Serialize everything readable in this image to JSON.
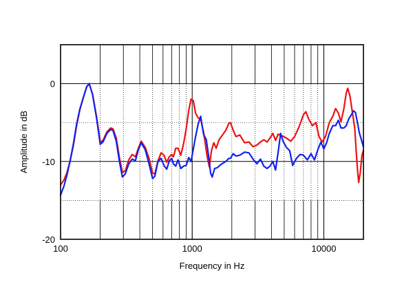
{
  "chart_data": {
    "type": "line",
    "xlabel": "Frequency in Hz",
    "ylabel": "Amplitude in dB",
    "x_scale": "log",
    "xlim": [
      100,
      20000
    ],
    "ylim": [
      -20,
      5
    ],
    "x_ticks": [
      {
        "value": 100,
        "label": "100"
      },
      {
        "value": 1000,
        "label": "1000"
      },
      {
        "value": 10000,
        "label": "10000"
      }
    ],
    "y_ticks": [
      {
        "value": 0,
        "label": "0"
      },
      {
        "value": -10,
        "label": "-10"
      },
      {
        "value": -20,
        "label": "-20"
      }
    ],
    "grid": true,
    "legend": "none",
    "series": [
      {
        "color": "#ee1111",
        "points": [
          [
            100,
            -13.0
          ],
          [
            106,
            -12.4
          ],
          [
            112,
            -11.4
          ],
          [
            118,
            -10.0
          ],
          [
            125,
            -8.0
          ],
          [
            132,
            -5.5
          ],
          [
            140,
            -3.4
          ],
          [
            150,
            -1.6
          ],
          [
            158,
            -0.4
          ],
          [
            165,
            0.0
          ],
          [
            175,
            -1.4
          ],
          [
            188,
            -4.3
          ],
          [
            200,
            -7.5
          ],
          [
            210,
            -7.3
          ],
          [
            225,
            -6.2
          ],
          [
            240,
            -5.7
          ],
          [
            250,
            -5.8
          ],
          [
            265,
            -7.0
          ],
          [
            280,
            -9.5
          ],
          [
            295,
            -11.4
          ],
          [
            310,
            -11.2
          ],
          [
            330,
            -9.8
          ],
          [
            350,
            -9.1
          ],
          [
            370,
            -9.4
          ],
          [
            390,
            -8.3
          ],
          [
            410,
            -7.4
          ],
          [
            440,
            -8.2
          ],
          [
            470,
            -9.6
          ],
          [
            500,
            -11.5
          ],
          [
            520,
            -11.6
          ],
          [
            550,
            -9.9
          ],
          [
            580,
            -8.9
          ],
          [
            610,
            -9.2
          ],
          [
            640,
            -10.1
          ],
          [
            670,
            -9.4
          ],
          [
            700,
            -9.1
          ],
          [
            720,
            -9.4
          ],
          [
            750,
            -8.3
          ],
          [
            780,
            -8.3
          ],
          [
            820,
            -9.2
          ],
          [
            860,
            -7.7
          ],
          [
            900,
            -5.8
          ],
          [
            940,
            -3.5
          ],
          [
            980,
            -2.0
          ],
          [
            1020,
            -2.2
          ],
          [
            1060,
            -3.8
          ],
          [
            1110,
            -4.4
          ],
          [
            1160,
            -4.6
          ],
          [
            1220,
            -6.2
          ],
          [
            1300,
            -9.4
          ],
          [
            1350,
            -10.7
          ],
          [
            1400,
            -8.6
          ],
          [
            1460,
            -7.6
          ],
          [
            1520,
            -8.3
          ],
          [
            1600,
            -7.2
          ],
          [
            1700,
            -6.6
          ],
          [
            1800,
            -6.0
          ],
          [
            1900,
            -5.1
          ],
          [
            1950,
            -5.0
          ],
          [
            2050,
            -6.0
          ],
          [
            2150,
            -6.8
          ],
          [
            2300,
            -6.6
          ],
          [
            2500,
            -7.6
          ],
          [
            2700,
            -7.5
          ],
          [
            2900,
            -8.1
          ],
          [
            3100,
            -7.9
          ],
          [
            3300,
            -7.5
          ],
          [
            3500,
            -7.2
          ],
          [
            3700,
            -7.5
          ],
          [
            3900,
            -7.0
          ],
          [
            4100,
            -6.4
          ],
          [
            4300,
            -7.3
          ],
          [
            4500,
            -6.5
          ],
          [
            4800,
            -6.7
          ],
          [
            5200,
            -7.0
          ],
          [
            5600,
            -7.4
          ],
          [
            6000,
            -6.8
          ],
          [
            6500,
            -5.5
          ],
          [
            7000,
            -4.0
          ],
          [
            7300,
            -3.6
          ],
          [
            7700,
            -4.6
          ],
          [
            8200,
            -5.4
          ],
          [
            8700,
            -5.0
          ],
          [
            9200,
            -6.8
          ],
          [
            9700,
            -7.5
          ],
          [
            10300,
            -6.8
          ],
          [
            11000,
            -5.0
          ],
          [
            11700,
            -4.2
          ],
          [
            12300,
            -3.2
          ],
          [
            12900,
            -3.8
          ],
          [
            13500,
            -4.9
          ],
          [
            14200,
            -3.2
          ],
          [
            14800,
            -1.2
          ],
          [
            15200,
            -0.6
          ],
          [
            15800,
            -1.6
          ],
          [
            16600,
            -4.0
          ],
          [
            17200,
            -5.8
          ],
          [
            17600,
            -8.6
          ],
          [
            18000,
            -11.0
          ],
          [
            18400,
            -12.7
          ],
          [
            18900,
            -11.5
          ],
          [
            19500,
            -9.2
          ],
          [
            20000,
            -8.6
          ]
        ]
      },
      {
        "color": "#1122ee",
        "points": [
          [
            100,
            -14.3
          ],
          [
            106,
            -13.2
          ],
          [
            112,
            -11.7
          ],
          [
            118,
            -10.0
          ],
          [
            125,
            -7.8
          ],
          [
            132,
            -5.3
          ],
          [
            140,
            -3.3
          ],
          [
            150,
            -1.6
          ],
          [
            158,
            -0.4
          ],
          [
            165,
            0.0
          ],
          [
            175,
            -1.4
          ],
          [
            188,
            -4.5
          ],
          [
            200,
            -7.8
          ],
          [
            210,
            -7.5
          ],
          [
            225,
            -6.4
          ],
          [
            240,
            -5.9
          ],
          [
            250,
            -6.0
          ],
          [
            265,
            -7.4
          ],
          [
            280,
            -10.0
          ],
          [
            295,
            -12.0
          ],
          [
            310,
            -11.6
          ],
          [
            330,
            -10.3
          ],
          [
            350,
            -9.7
          ],
          [
            370,
            -9.9
          ],
          [
            390,
            -8.5
          ],
          [
            410,
            -7.6
          ],
          [
            440,
            -8.5
          ],
          [
            470,
            -10.3
          ],
          [
            500,
            -12.2
          ],
          [
            520,
            -11.9
          ],
          [
            550,
            -10.0
          ],
          [
            580,
            -9.6
          ],
          [
            610,
            -10.5
          ],
          [
            640,
            -11.0
          ],
          [
            670,
            -9.9
          ],
          [
            700,
            -9.6
          ],
          [
            720,
            -10.3
          ],
          [
            750,
            -10.6
          ],
          [
            780,
            -9.8
          ],
          [
            820,
            -10.9
          ],
          [
            860,
            -10.6
          ],
          [
            900,
            -10.5
          ],
          [
            940,
            -9.5
          ],
          [
            980,
            -10.0
          ],
          [
            1020,
            -8.4
          ],
          [
            1060,
            -6.8
          ],
          [
            1110,
            -5.2
          ],
          [
            1160,
            -4.2
          ],
          [
            1220,
            -6.5
          ],
          [
            1280,
            -7.2
          ],
          [
            1330,
            -9.2
          ],
          [
            1380,
            -11.5
          ],
          [
            1420,
            -12.0
          ],
          [
            1480,
            -10.9
          ],
          [
            1550,
            -10.8
          ],
          [
            1650,
            -10.4
          ],
          [
            1800,
            -10.0
          ],
          [
            1900,
            -9.6
          ],
          [
            1950,
            -9.6
          ],
          [
            2050,
            -9.0
          ],
          [
            2150,
            -9.3
          ],
          [
            2300,
            -9.2
          ],
          [
            2500,
            -8.8
          ],
          [
            2700,
            -8.9
          ],
          [
            2900,
            -9.7
          ],
          [
            3100,
            -10.3
          ],
          [
            3300,
            -9.7
          ],
          [
            3500,
            -10.6
          ],
          [
            3700,
            -10.9
          ],
          [
            3900,
            -10.6
          ],
          [
            4100,
            -10.0
          ],
          [
            4300,
            -11.1
          ],
          [
            4500,
            -8.8
          ],
          [
            4700,
            -6.4
          ],
          [
            4900,
            -7.4
          ],
          [
            5200,
            -8.2
          ],
          [
            5500,
            -8.6
          ],
          [
            5800,
            -10.5
          ],
          [
            6200,
            -9.6
          ],
          [
            6600,
            -9.1
          ],
          [
            7000,
            -9.2
          ],
          [
            7500,
            -9.8
          ],
          [
            8000,
            -9.0
          ],
          [
            8500,
            -9.8
          ],
          [
            9000,
            -8.5
          ],
          [
            9500,
            -7.5
          ],
          [
            10000,
            -8.4
          ],
          [
            10500,
            -7.6
          ],
          [
            11000,
            -6.4
          ],
          [
            11700,
            -5.4
          ],
          [
            12300,
            -5.4
          ],
          [
            12900,
            -4.7
          ],
          [
            13500,
            -5.7
          ],
          [
            14200,
            -5.7
          ],
          [
            14800,
            -5.4
          ],
          [
            15500,
            -4.5
          ],
          [
            16200,
            -4.0
          ],
          [
            16800,
            -3.5
          ],
          [
            17400,
            -3.7
          ],
          [
            18000,
            -5.0
          ],
          [
            18600,
            -6.3
          ],
          [
            19300,
            -7.2
          ],
          [
            20000,
            -8.1
          ]
        ]
      }
    ]
  }
}
